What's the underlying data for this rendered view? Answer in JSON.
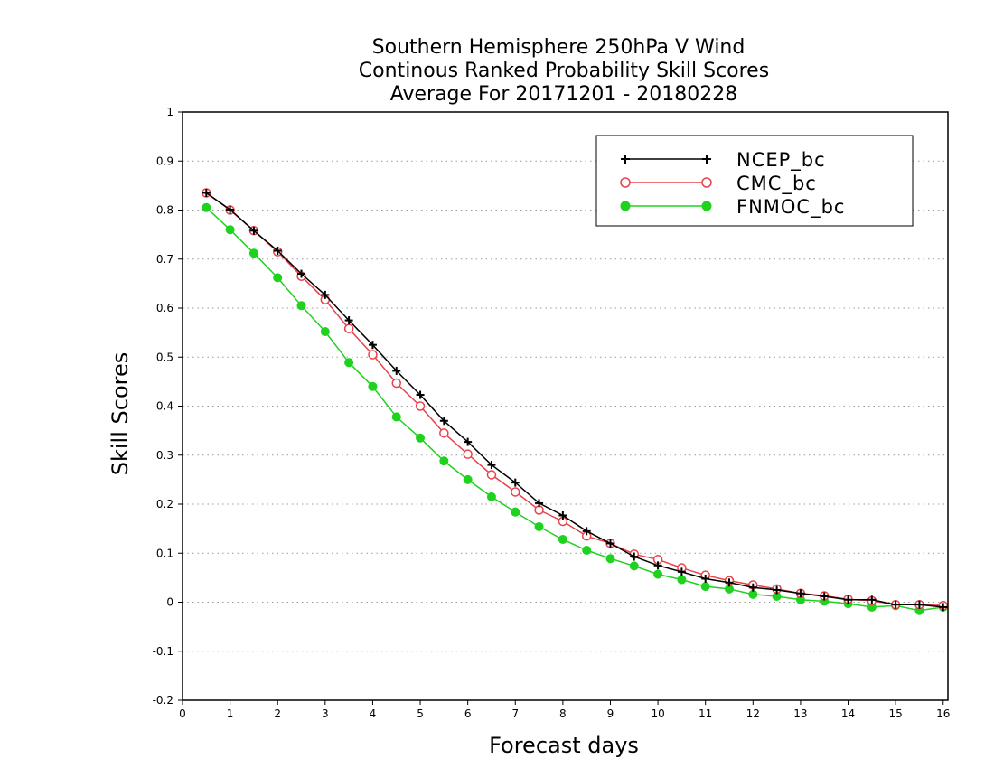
{
  "chart_data": {
    "type": "line",
    "title": [
      "Southern Hemisphere 250hPa V Wind",
      "Continous Ranked Probability Skill Scores",
      "Average For 20171201 - 20180228"
    ],
    "xlabel": "Forecast days",
    "ylabel": "Skill Scores",
    "xlim": [
      0,
      16.1
    ],
    "ylim": [
      -0.2,
      1
    ],
    "xticks": [
      0,
      1,
      2,
      3,
      4,
      5,
      6,
      7,
      8,
      9,
      10,
      11,
      12,
      13,
      14,
      15,
      16
    ],
    "xtick_labels": [
      "0",
      "1",
      "2",
      "3",
      "4",
      "5",
      "6",
      "7",
      "8",
      "9",
      "10",
      "11",
      "12",
      "13",
      "14",
      "15",
      "16"
    ],
    "yticks": [
      -0.2,
      -0.1,
      0,
      0.1,
      0.2,
      0.3,
      0.4,
      0.5,
      0.6,
      0.7,
      0.8,
      0.9,
      1
    ],
    "ytick_labels": [
      "-0.2",
      "-0.1",
      "0",
      "0.1",
      "0.2",
      "0.3",
      "0.4",
      "0.5",
      "0.6",
      "0.7",
      "0.8",
      "0.9",
      "1"
    ],
    "grid": "horizontal dotted",
    "legend_position": "top-right",
    "x": [
      0.5,
      1,
      1.5,
      2,
      2.5,
      3,
      3.5,
      4,
      4.5,
      5,
      5.5,
      6,
      6.5,
      7,
      7.5,
      8,
      8.5,
      9,
      9.5,
      10,
      10.5,
      11,
      11.5,
      12,
      12.5,
      13,
      13.5,
      14,
      14.5,
      15,
      15.5,
      16
    ],
    "series": [
      {
        "name": "NCEP_bc",
        "color": "#000000",
        "marker": "plus",
        "values": [
          0.835,
          0.801,
          0.758,
          0.717,
          0.67,
          0.627,
          0.575,
          0.525,
          0.472,
          0.423,
          0.37,
          0.327,
          0.28,
          0.244,
          0.202,
          0.177,
          0.145,
          0.12,
          0.093,
          0.075,
          0.062,
          0.048,
          0.04,
          0.03,
          0.025,
          0.018,
          0.012,
          0.005,
          0.005,
          -0.005,
          -0.005,
          -0.01
        ]
      },
      {
        "name": "CMC_bc",
        "color": "#e8424a",
        "marker": "open-circle",
        "values": [
          0.835,
          0.8,
          0.758,
          0.715,
          0.665,
          0.617,
          0.558,
          0.505,
          0.447,
          0.4,
          0.345,
          0.302,
          0.26,
          0.225,
          0.188,
          0.165,
          0.135,
          0.12,
          0.098,
          0.087,
          0.07,
          0.055,
          0.044,
          0.035,
          0.027,
          0.018,
          0.013,
          0.006,
          0.003,
          -0.005,
          -0.005,
          -0.007
        ]
      },
      {
        "name": "FNMOC_bc",
        "color": "#1ed21e",
        "marker": "filled-circle",
        "values": [
          0.805,
          0.76,
          0.712,
          0.662,
          0.605,
          0.552,
          0.489,
          0.44,
          0.378,
          0.335,
          0.288,
          0.25,
          0.215,
          0.184,
          0.154,
          0.128,
          0.106,
          0.089,
          0.074,
          0.057,
          0.046,
          0.032,
          0.027,
          0.016,
          0.012,
          0.005,
          0.002,
          -0.003,
          -0.01,
          -0.007,
          -0.017,
          -0.01
        ]
      }
    ]
  }
}
